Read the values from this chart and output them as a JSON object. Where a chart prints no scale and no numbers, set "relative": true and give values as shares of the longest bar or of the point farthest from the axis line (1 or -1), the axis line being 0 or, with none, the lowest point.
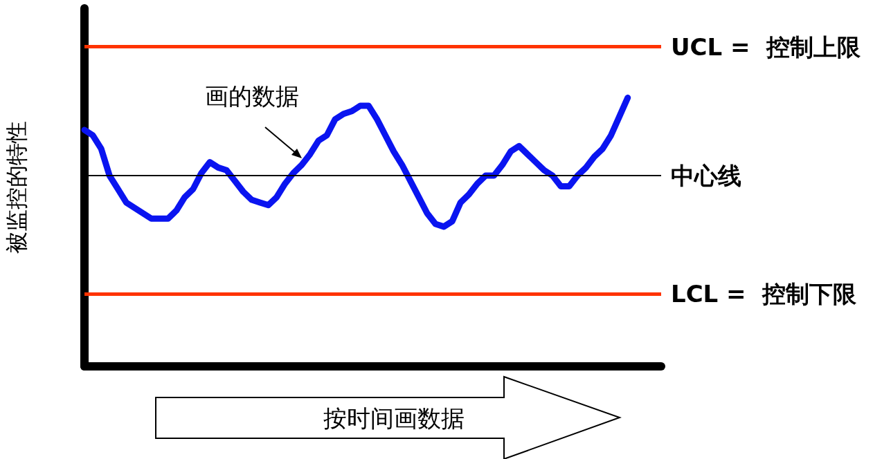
{
  "chart_data": {
    "type": "line",
    "relative": true,
    "ylabel": "被监控的特性",
    "xlabel": "按时间画数据",
    "annotations": [
      "画的数据"
    ],
    "categories": [
      null,
      null,
      null,
      null,
      null,
      null,
      null,
      null,
      null,
      null,
      null,
      null,
      null,
      null,
      null,
      null,
      null,
      null,
      null,
      null,
      null,
      null,
      null,
      null,
      null,
      null,
      null,
      null,
      null,
      null,
      null,
      null,
      null,
      null,
      null,
      null,
      null,
      null,
      null,
      null,
      null,
      null,
      null,
      null,
      null,
      null,
      null,
      null,
      null,
      null,
      null,
      null,
      null,
      null,
      null,
      null,
      null,
      null,
      null,
      null,
      null,
      null,
      null,
      null,
      null,
      null,
      null,
      null,
      null,
      null
    ],
    "series": [
      {
        "color": "#0a14f0",
        "values": [
          0.88,
          0.86,
          0.81,
          0.71,
          0.66,
          0.61,
          0.59,
          0.57,
          0.55,
          0.55,
          0.55,
          0.58,
          0.63,
          0.66,
          0.72,
          0.76,
          0.74,
          0.73,
          0.69,
          0.65,
          0.62,
          0.61,
          0.6,
          0.63,
          0.68,
          0.72,
          0.75,
          0.79,
          0.84,
          0.86,
          0.92,
          0.94,
          0.95,
          0.97,
          0.97,
          0.92,
          0.86,
          0.8,
          0.75,
          0.69,
          0.63,
          0.57,
          0.53,
          0.52,
          0.54,
          0.61,
          0.64,
          0.68,
          0.71,
          0.71,
          0.75,
          0.8,
          0.82,
          0.79,
          0.76,
          0.73,
          0.71,
          0.67,
          0.67,
          0.71,
          0.74,
          0.78,
          0.81,
          0.86,
          0.93,
          1,
          null,
          null,
          null,
          null
        ]
      }
    ],
    "ref_lines": [
      {
        "axis": "y",
        "value": 1.19,
        "label": "UCL =  控制上限",
        "color": "#ff3300"
      },
      {
        "axis": "y",
        "value": 0.71,
        "label": "中心线",
        "color": "#000000"
      },
      {
        "axis": "y",
        "value": 0.27,
        "label": "LCL =  控制下限",
        "color": "#ff3300"
      }
    ],
    "grid": false,
    "line_style": "solid"
  }
}
